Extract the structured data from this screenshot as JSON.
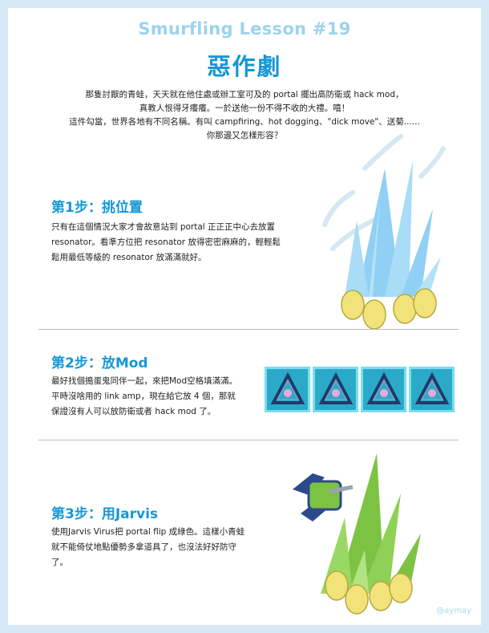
{
  "header": {
    "lesson": "Smurfling Lesson #19",
    "title": "惡作劇"
  },
  "intro": {
    "lines": [
      "那隻討厭的青蛙，天天就在他住處或辦工室可及的 portal 擺出高防衛或  hack mod，",
      "真教人恨得牙癢癢。一於送他一份不得不收的大禮。嘻！",
      "這件勾當，世界各地有不同名稱。有叫  campfiring、hot dogging、\"dick move\"、送菊......",
      "你那邊又怎樣形容？"
    ]
  },
  "steps": [
    {
      "heading": "第1步：挑位置",
      "lines": [
        "只有在這個情況大家才會故意站到 portal 正正正中心去放置",
        "resonator。看準方位把 resonator 放得密密麻麻的，輕輕鬆",
        "鬆用最低等級的 resonator 放滿滿就好。"
      ]
    },
    {
      "heading": "第2步：放Mod",
      "lines": [
        "最好找個搗蛋鬼同伴一起，來把Mod空格填滿滿。",
        "平時沒啥用的 link amp，現在給它放 4 個，那就",
        "保證沒有人可以放防衛或者 hack mod 了。"
      ]
    },
    {
      "heading": "第3步：用Jarvis",
      "lines": [
        "使用Jarvis Virus把 portal flip 成綠色。這樣小青蛙",
        "就不能倚仗地點優勢多拿道具了，也沒法好好防守",
        "了。"
      ]
    }
  ],
  "mods": [
    "link-amp-mod-icon",
    "link-amp-mod-icon",
    "link-amp-mod-icon",
    "link-amp-mod-icon"
  ],
  "credit": "@aymay",
  "colors": {
    "background": "#d6e8f6",
    "lesson_title": "#9bd3ec",
    "accent": "#1597d6",
    "resistance_portal": "#8fd0f4",
    "enlightened_portal": "#7cc243",
    "resonator": "#f2e27a",
    "mod_tile": "#2aaac8"
  }
}
